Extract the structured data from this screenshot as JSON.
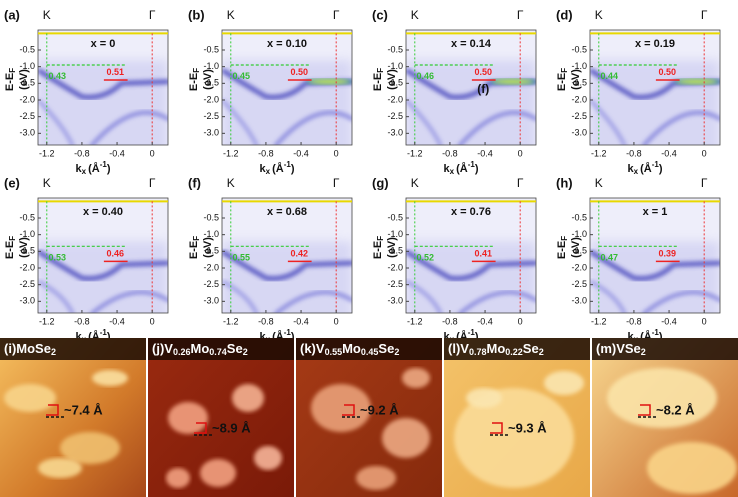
{
  "axes": {
    "y_label": {
      "main": "E-E",
      "sub": "F",
      "unit": "(eV)"
    },
    "x_label": {
      "main": "k",
      "sub": "x",
      "unit_open": "(Å",
      "sup": "-1",
      "unit_close": ")"
    },
    "yticks": [
      -0.5,
      {
        "value": -1.0,
        "label": "-1.0"
      },
      -1.5,
      {
        "value": -2.0,
        "label": "-2.0"
      },
      -2.5,
      {
        "value": -3.0,
        "label": "-3.0"
      }
    ],
    "xticks": [
      -1.2,
      -0.8,
      -0.4,
      0
    ],
    "xlim": [
      -1.3,
      0.18
    ],
    "ylim": [
      0.1,
      -3.35
    ],
    "k_label": "K",
    "gamma_label": "Γ"
  },
  "arpes_panels": [
    {
      "label": "(a)",
      "x_text": "x = 0",
      "green": "0.43",
      "red": "0.51"
    },
    {
      "label": "(b)",
      "x_text": "x = 0.10",
      "green": "0.45",
      "red": "0.50"
    },
    {
      "label": "(c)",
      "x_text": "x = 0.14",
      "green": "0.46",
      "red": "0.50",
      "note": "(f)"
    },
    {
      "label": "(d)",
      "x_text": "x = 0.19",
      "green": "0.44",
      "red": "0.50"
    },
    {
      "label": "(e)",
      "x_text": "x = 0.40",
      "green": "0.53",
      "red": "0.46"
    },
    {
      "label": "(f)",
      "x_text": "x = 0.68",
      "green": "0.55",
      "red": "0.42"
    },
    {
      "label": "(g)",
      "x_text": "x = 0.76",
      "green": "0.52",
      "red": "0.41"
    },
    {
      "label": "(h)",
      "x_text": "x = 1",
      "green": "0.47",
      "red": "0.39"
    }
  ],
  "stm_panels": [
    {
      "label": "(i)",
      "name": [
        {
          "t": "MoSe"
        },
        {
          "t": "2",
          "sub": true
        }
      ],
      "step": "~7.4 Å"
    },
    {
      "label": "(j)",
      "name": [
        {
          "t": "V"
        },
        {
          "t": "0.26",
          "sub": true
        },
        {
          "t": "Mo"
        },
        {
          "t": "0.74",
          "sub": true
        },
        {
          "t": "Se"
        },
        {
          "t": "2",
          "sub": true
        }
      ],
      "step": "~8.9 Å"
    },
    {
      "label": "(k)",
      "name": [
        {
          "t": "V"
        },
        {
          "t": "0.55",
          "sub": true
        },
        {
          "t": "Mo"
        },
        {
          "t": "0.45",
          "sub": true
        },
        {
          "t": "Se"
        },
        {
          "t": "2",
          "sub": true
        }
      ],
      "step": "~9.2 Å"
    },
    {
      "label": "(l)",
      "name": [
        {
          "t": "V"
        },
        {
          "t": "0.78",
          "sub": true
        },
        {
          "t": "Mo"
        },
        {
          "t": "0.22",
          "sub": true
        },
        {
          "t": "Se"
        },
        {
          "t": "2",
          "sub": true
        }
      ],
      "step": "~9.3 Å"
    },
    {
      "label": "(m)",
      "name": [
        {
          "t": "VSe"
        },
        {
          "t": "2",
          "sub": true
        }
      ],
      "step": "~8.2 Å"
    }
  ]
}
